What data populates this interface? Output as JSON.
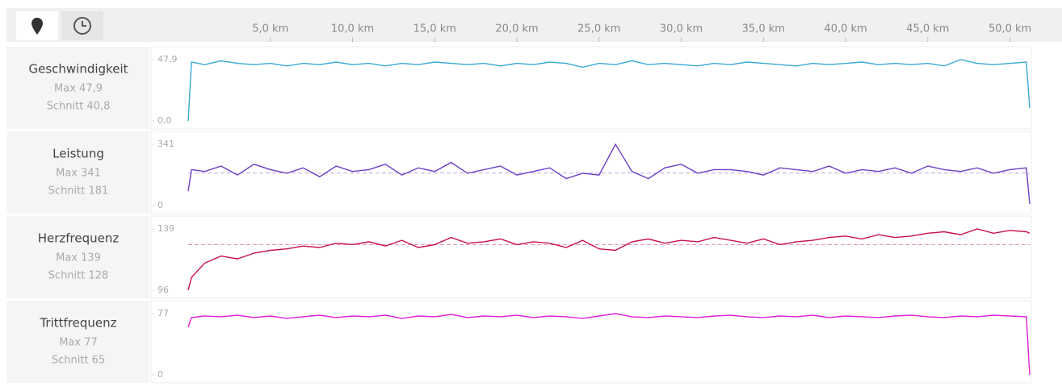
{
  "x_axis": {
    "x": [
      0,
      0.2,
      1,
      2,
      3,
      4,
      5,
      6,
      7,
      8,
      9,
      10,
      11,
      12,
      13,
      14,
      15,
      16,
      17,
      18,
      19,
      20,
      21,
      22,
      23,
      24,
      25,
      26,
      27,
      28,
      29,
      30,
      31,
      32,
      33,
      34,
      35,
      36,
      37,
      38,
      39,
      40,
      41,
      42,
      43,
      44,
      45,
      46,
      47,
      48,
      49,
      50,
      51,
      51.2
    ],
    "xlim": [
      0,
      51.2
    ],
    "xticks": [
      {
        "value": 5,
        "label": "5,0 km"
      },
      {
        "value": 10,
        "label": "10,0 km"
      },
      {
        "value": 15,
        "label": "15,0 km"
      },
      {
        "value": 20,
        "label": "20,0 km"
      },
      {
        "value": 25,
        "label": "25,0 km"
      },
      {
        "value": 30,
        "label": "30,0 km"
      },
      {
        "value": 35,
        "label": "35,0 km"
      },
      {
        "value": 40,
        "label": "40,0 km"
      },
      {
        "value": 45,
        "label": "45,0 km"
      },
      {
        "value": 50,
        "label": "50,0 km"
      }
    ]
  },
  "chart_data": [
    {
      "type": "line",
      "title": "Geschwindigkeit",
      "max": "Max 47,9",
      "average": "Schnitt 40,8",
      "color": "#3aaad6",
      "values": [
        0,
        46,
        44,
        47,
        45,
        44,
        45,
        43,
        45,
        44,
        46,
        44,
        45,
        43,
        45,
        44,
        46,
        45,
        44,
        45,
        43,
        45,
        44,
        46,
        45,
        42,
        45,
        44,
        47,
        44,
        45,
        44,
        43,
        45,
        44,
        46,
        45,
        44,
        43,
        45,
        44,
        45,
        46,
        44,
        45,
        44,
        45,
        43,
        47.9,
        45,
        44,
        45,
        46,
        10
      ],
      "ylim": [
        0,
        47.9
      ],
      "yticks": [
        {
          "value": 47.9,
          "label": "47,9"
        },
        {
          "value": 0,
          "label": "0,0"
        }
      ]
    },
    {
      "type": "line",
      "title": "Leistung",
      "max": "Max 341",
      "average": "Schnitt 181",
      "average_line": 181,
      "color": "#6a3fc8",
      "values": [
        80,
        200,
        190,
        220,
        170,
        230,
        200,
        180,
        210,
        160,
        220,
        190,
        200,
        230,
        170,
        210,
        190,
        240,
        180,
        200,
        220,
        170,
        190,
        210,
        150,
        180,
        170,
        341,
        190,
        150,
        210,
        230,
        180,
        200,
        200,
        190,
        170,
        210,
        200,
        190,
        220,
        180,
        200,
        190,
        210,
        180,
        220,
        200,
        190,
        210,
        180,
        200,
        210,
        10
      ],
      "ylim": [
        0,
        341
      ],
      "yticks": [
        341,
        0
      ]
    },
    {
      "type": "line",
      "title": "Herzfrequenz",
      "max": "Max 139",
      "average": "Schnitt 128",
      "average_line": 128,
      "color": "#c8104f",
      "values": [
        96,
        105,
        115,
        120,
        118,
        122,
        124,
        125,
        127,
        126,
        129,
        128,
        130,
        127,
        131,
        126,
        128,
        133,
        129,
        130,
        132,
        128,
        130,
        129,
        126,
        131,
        125,
        124,
        130,
        132,
        129,
        131,
        130,
        133,
        131,
        129,
        132,
        128,
        130,
        131,
        133,
        134,
        132,
        135,
        133,
        134,
        136,
        137,
        135,
        139,
        136,
        138,
        137,
        136
      ],
      "ylim": [
        96,
        139
      ],
      "yticks": [
        139,
        96
      ]
    },
    {
      "type": "line",
      "title": "Trittfrequenz",
      "max": "Max 77",
      "average": "Schnitt 65",
      "color": "#e020d8",
      "values": [
        60,
        72,
        74,
        73,
        75,
        72,
        74,
        71,
        73,
        75,
        72,
        74,
        73,
        75,
        71,
        74,
        73,
        76,
        72,
        74,
        73,
        75,
        72,
        74,
        73,
        71,
        74,
        77,
        73,
        72,
        74,
        73,
        72,
        74,
        75,
        73,
        72,
        74,
        73,
        75,
        72,
        74,
        73,
        72,
        74,
        75,
        73,
        72,
        74,
        73,
        75,
        74,
        73,
        0
      ],
      "ylim": [
        0,
        77
      ],
      "yticks": [
        77,
        0
      ]
    }
  ]
}
